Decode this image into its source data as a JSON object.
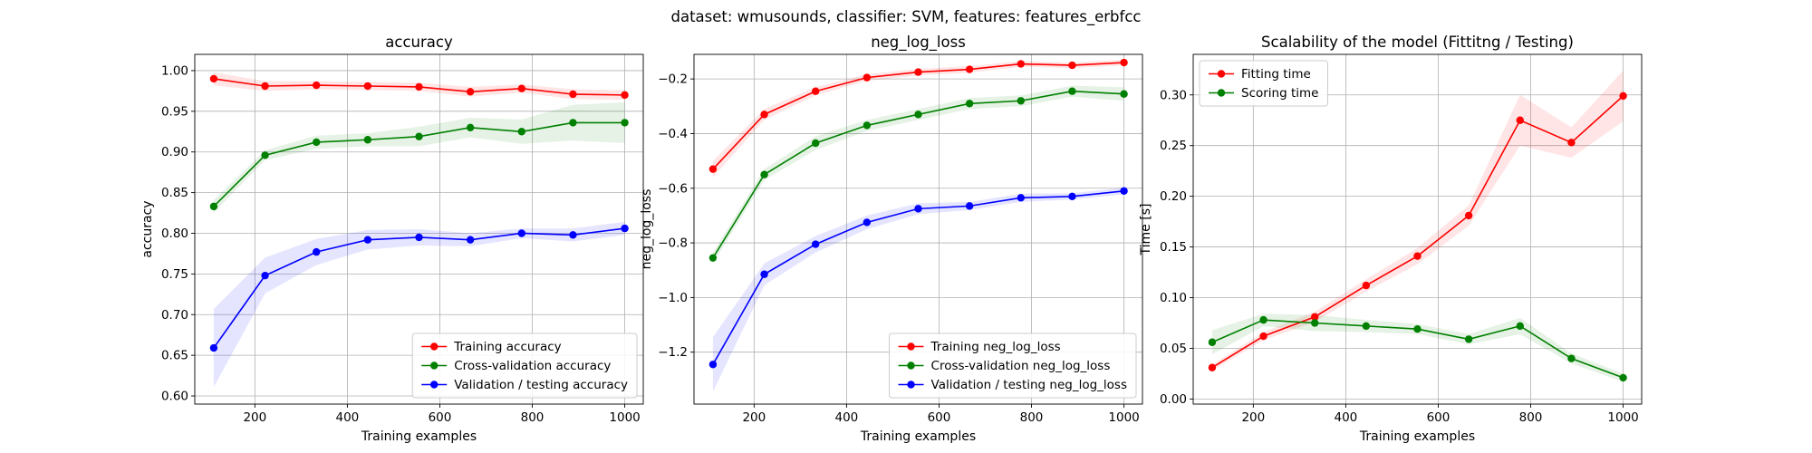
{
  "suptitle": "dataset: wmusounds, classifier: SVM, features: features_erbfcc",
  "chart_data": [
    {
      "type": "line",
      "title": "accuracy",
      "xlabel": "Training examples",
      "ylabel": "accuracy",
      "xlim": [
        70,
        1040
      ],
      "ylim": [
        0.59,
        1.02
      ],
      "xticks": [
        200,
        400,
        600,
        800,
        1000
      ],
      "xtick_labels": [
        "200",
        "400",
        "600",
        "800",
        "1000"
      ],
      "yticks": [
        0.6,
        0.65,
        0.7,
        0.75,
        0.8,
        0.85,
        0.9,
        0.95,
        1.0
      ],
      "ytick_labels": [
        "0.60",
        "0.65",
        "0.70",
        "0.75",
        "0.80",
        "0.85",
        "0.90",
        "0.95",
        "1.00"
      ],
      "grid": true,
      "legend_position": "lower-right",
      "x": [
        111,
        222,
        333,
        444,
        555,
        666,
        777,
        888,
        1000
      ],
      "series": [
        {
          "name": "Training accuracy",
          "color": "#ff0000",
          "values": [
            0.99,
            0.981,
            0.982,
            0.981,
            0.98,
            0.974,
            0.978,
            0.971,
            0.97
          ],
          "band": [
            0.008,
            0.006,
            0.005,
            0.005,
            0.005,
            0.006,
            0.005,
            0.006,
            0.006
          ]
        },
        {
          "name": "Cross-validation accuracy",
          "color": "#008000",
          "values": [
            0.833,
            0.896,
            0.912,
            0.915,
            0.919,
            0.93,
            0.925,
            0.936,
            0.936
          ],
          "band": [
            0.008,
            0.006,
            0.008,
            0.008,
            0.012,
            0.012,
            0.015,
            0.022,
            0.025
          ]
        },
        {
          "name": "Validation / testing accuracy",
          "color": "#0000ff",
          "values": [
            0.659,
            0.748,
            0.777,
            0.792,
            0.795,
            0.792,
            0.8,
            0.798,
            0.806
          ],
          "band": [
            0.048,
            0.022,
            0.016,
            0.012,
            0.01,
            0.008,
            0.006,
            0.008,
            0.008
          ]
        }
      ]
    },
    {
      "type": "line",
      "title": "neg_log_loss",
      "xlabel": "Training examples",
      "ylabel": "neg_log_loss",
      "xlim": [
        70,
        1040
      ],
      "ylim": [
        -1.39,
        -0.11
      ],
      "xticks": [
        200,
        400,
        600,
        800,
        1000
      ],
      "xtick_labels": [
        "200",
        "400",
        "600",
        "800",
        "1000"
      ],
      "yticks": [
        -1.2,
        -1.0,
        -0.8,
        -0.6,
        -0.4,
        -0.2
      ],
      "ytick_labels": [
        "−1.2",
        "−1.0",
        "−0.8",
        "−0.6",
        "−0.4",
        "−0.2"
      ],
      "grid": true,
      "legend_position": "lower-right",
      "x": [
        111,
        222,
        333,
        444,
        555,
        666,
        777,
        888,
        1000
      ],
      "series": [
        {
          "name": "Training neg_log_loss",
          "color": "#ff0000",
          "values": [
            -0.53,
            -0.33,
            -0.245,
            -0.195,
            -0.175,
            -0.165,
            -0.145,
            -0.15,
            -0.14
          ],
          "band": [
            0.03,
            0.02,
            0.015,
            0.012,
            0.012,
            0.012,
            0.01,
            0.01,
            0.01
          ]
        },
        {
          "name": "Cross-validation neg_log_loss",
          "color": "#008000",
          "values": [
            -0.855,
            -0.55,
            -0.435,
            -0.37,
            -0.33,
            -0.29,
            -0.28,
            -0.245,
            -0.255
          ],
          "band": [
            0.02,
            0.02,
            0.025,
            0.02,
            0.02,
            0.02,
            0.02,
            0.02,
            0.025
          ]
        },
        {
          "name": "Validation / testing neg_log_loss",
          "color": "#0000ff",
          "values": [
            -1.245,
            -0.915,
            -0.805,
            -0.725,
            -0.675,
            -0.665,
            -0.635,
            -0.63,
            -0.61
          ],
          "band": [
            0.1,
            0.04,
            0.03,
            0.025,
            0.02,
            0.015,
            0.015,
            0.012,
            0.012
          ]
        }
      ]
    },
    {
      "type": "line",
      "title": "Scalability of the model (Fittitng / Testing)",
      "xlabel": "Training examples",
      "ylabel": "Time [s]",
      "xlim": [
        70,
        1040
      ],
      "ylim": [
        -0.005,
        0.34
      ],
      "xticks": [
        200,
        400,
        600,
        800,
        1000
      ],
      "xtick_labels": [
        "200",
        "400",
        "600",
        "800",
        "1000"
      ],
      "yticks": [
        0.0,
        0.05,
        0.1,
        0.15,
        0.2,
        0.25,
        0.3
      ],
      "ytick_labels": [
        "0.00",
        "0.05",
        "0.10",
        "0.15",
        "0.20",
        "0.25",
        "0.30"
      ],
      "grid": true,
      "legend_position": "upper-left",
      "x": [
        111,
        222,
        333,
        444,
        555,
        666,
        777,
        888,
        1000
      ],
      "series": [
        {
          "name": "Fitting time",
          "color": "#ff0000",
          "values": [
            0.031,
            0.062,
            0.081,
            0.112,
            0.141,
            0.181,
            0.275,
            0.253,
            0.299
          ],
          "band": [
            0.003,
            0.004,
            0.005,
            0.006,
            0.008,
            0.01,
            0.025,
            0.015,
            0.025
          ]
        },
        {
          "name": "Scoring time",
          "color": "#008000",
          "values": [
            0.056,
            0.078,
            0.075,
            0.072,
            0.069,
            0.059,
            0.072,
            0.04,
            0.021
          ],
          "band": [
            0.012,
            0.006,
            0.008,
            0.006,
            0.005,
            0.005,
            0.008,
            0.005,
            0.004
          ]
        }
      ]
    }
  ]
}
